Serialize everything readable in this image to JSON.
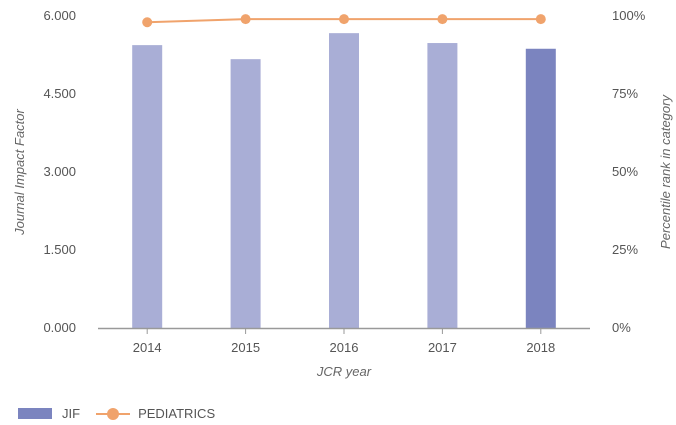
{
  "chart_data": {
    "type": "bar",
    "categories": [
      "2014",
      "2015",
      "2016",
      "2017",
      "2018"
    ],
    "series": [
      {
        "name": "JIF",
        "type": "bar",
        "axis": "left",
        "values": [
          5.44,
          5.17,
          5.67,
          5.48,
          5.37
        ]
      },
      {
        "name": "PEDIATRICS",
        "type": "line",
        "axis": "right",
        "values": [
          98,
          99,
          99,
          99,
          99
        ]
      }
    ],
    "xlabel": "JCR year",
    "ylabel": "Journal Impact Factor",
    "y2label": "Percentile rank in category",
    "ylim": [
      0,
      6
    ],
    "y2lim": [
      0,
      100
    ],
    "yticks": [
      "0.000",
      "1.500",
      "3.000",
      "4.500",
      "6.000"
    ],
    "y2ticks": [
      "0%",
      "25%",
      "50%",
      "75%",
      "100%"
    ],
    "grid": false,
    "legend": "bottom-left",
    "colors": {
      "bar": "#a9aed6",
      "bar_highlight": "#7b84bf",
      "line": "#f0a36c",
      "axis": "#999999"
    }
  }
}
